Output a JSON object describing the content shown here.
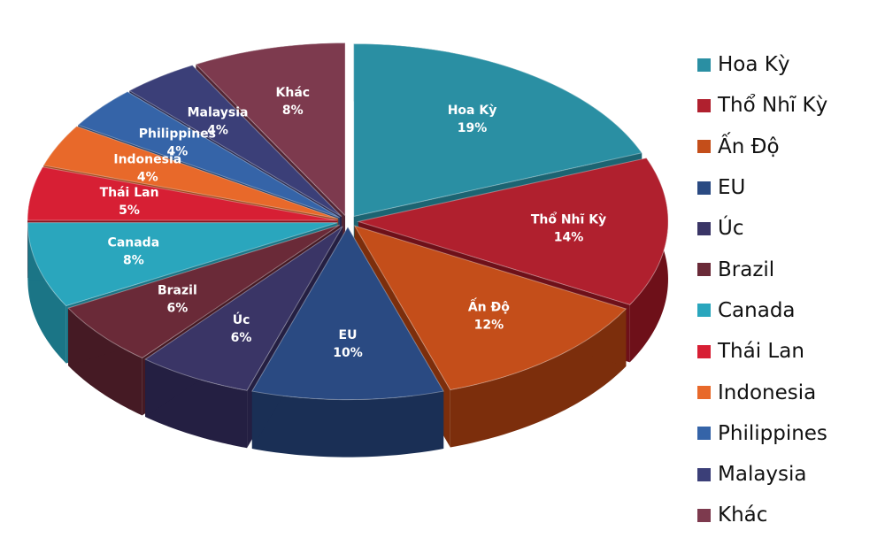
{
  "chart_data": {
    "type": "pie",
    "title": "",
    "slices": [
      {
        "label": "Hoa Kỳ",
        "value": 19,
        "display": "19%",
        "color": "#2a8fa3",
        "side": "#1c6472"
      },
      {
        "label": "Thổ Nhĩ Kỳ",
        "value": 14,
        "display": "14%",
        "color": "#b0202e",
        "side": "#6e1019"
      },
      {
        "label": "Ấn Độ",
        "value": 12,
        "display": "12%",
        "color": "#c44e1a",
        "side": "#7c2e0c"
      },
      {
        "label": "EU",
        "value": 10,
        "display": "10%",
        "color": "#2a4a82",
        "side": "#1a2f55"
      },
      {
        "label": "Úc",
        "value": 6,
        "display": "6%",
        "color": "#3a3566",
        "side": "#241f42"
      },
      {
        "label": "Brazil",
        "value": 6,
        "display": "6%",
        "color": "#6a2a38",
        "side": "#451a24"
      },
      {
        "label": "Canada",
        "value": 8,
        "display": "8%",
        "color": "#2aa6bd",
        "side": "#1b7586"
      },
      {
        "label": "Thái Lan",
        "value": 5,
        "display": "5%",
        "color": "#d71f34",
        "side": "#8c121f"
      },
      {
        "label": "Indonesia",
        "value": 4,
        "display": "4%",
        "color": "#e8692a",
        "side": "#9e4418"
      },
      {
        "label": "Philippines",
        "value": 4,
        "display": "4%",
        "color": "#3564a8",
        "side": "#21406e"
      },
      {
        "label": "Malaysia",
        "value": 4,
        "display": "4%",
        "color": "#3b3f78",
        "side": "#262850"
      },
      {
        "label": "Khác",
        "value": 8,
        "display": "8%",
        "color": "#7d3a4e",
        "side": "#522533"
      }
    ],
    "legend_position": "right"
  }
}
